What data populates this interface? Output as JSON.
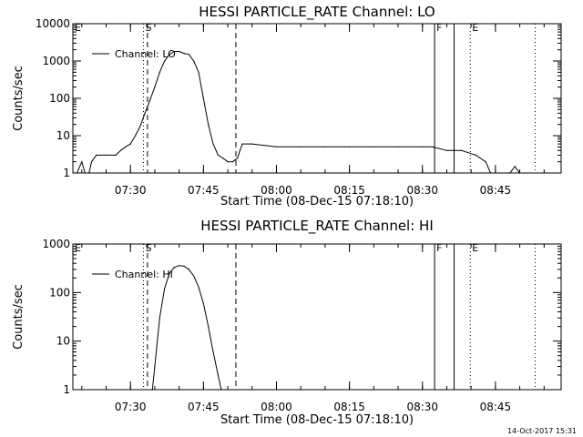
{
  "stamp": "14-Oct-2017 15:31",
  "chart_data": [
    {
      "type": "line",
      "title": "HESSI PARTICLE_RATE Channel: LO",
      "xlabel": "Start Time (08-Dec-15 07:18:10)",
      "ylabel": "Counts/sec",
      "yscale": "log",
      "ylim": [
        1,
        10000
      ],
      "xlim": [
        "07:18:10",
        "08:58:30"
      ],
      "x_ticks": [
        "07:30",
        "07:45",
        "08:00",
        "08:15",
        "08:30",
        "08:45"
      ],
      "y_ticks": [
        "1",
        "10",
        "100",
        "1000",
        "10000"
      ],
      "grid": false,
      "legend_position": "top-left",
      "markers": [
        {
          "label": "E",
          "time": "07:18:10",
          "style": "none"
        },
        {
          "label": "S",
          "time": "07:32:40",
          "style": "dotted"
        },
        {
          "label": "",
          "time": "07:33:30",
          "style": "dashed"
        },
        {
          "label": "",
          "time": "07:51:40",
          "style": "dashed"
        },
        {
          "label": "F",
          "time": "08:32:30",
          "style": "solid"
        },
        {
          "label": "",
          "time": "08:36:30",
          "style": "solid"
        },
        {
          "label": "E",
          "time": "08:39:50",
          "style": "dotted"
        },
        {
          "label": "",
          "time": "08:53:10",
          "style": "dotted"
        }
      ],
      "series": [
        {
          "name": "Channel: LO",
          "x": [
            "07:19:00",
            "07:20:00",
            "07:20:40",
            "07:21:30",
            "07:22:00",
            "07:23:00",
            "07:25:00",
            "07:27:00",
            "07:28:00",
            "07:29:00",
            "07:30:00",
            "07:31:00",
            "07:32:00",
            "07:33:00",
            "07:34:00",
            "07:35:00",
            "07:36:00",
            "07:37:00",
            "07:38:00",
            "07:39:00",
            "07:40:00",
            "07:41:00",
            "07:42:00",
            "07:43:00",
            "07:44:00",
            "07:45:00",
            "07:46:00",
            "07:47:00",
            "07:48:00",
            "07:49:00",
            "07:50:00",
            "07:51:00",
            "07:52:00",
            "07:52:30",
            "07:53:00",
            "07:55:00",
            "08:00:00",
            "08:05:00",
            "08:10:00",
            "08:15:00",
            "08:20:00",
            "08:25:00",
            "08:30:00",
            "08:32:00",
            "08:35:00",
            "08:38:00",
            "08:41:00",
            "08:43:00",
            "08:44:00",
            "08:46:00",
            "08:48:00",
            "08:49:00",
            "08:50:00"
          ],
          "y": [
            1,
            2,
            1,
            1,
            2,
            3,
            3,
            3,
            4,
            5,
            6,
            10,
            18,
            40,
            90,
            200,
            500,
            1000,
            1500,
            1800,
            1800,
            1600,
            1500,
            1000,
            500,
            100,
            20,
            6,
            3,
            2.5,
            2,
            2,
            2.5,
            4,
            6,
            6,
            5,
            5,
            5,
            5,
            5,
            5,
            5,
            5,
            4,
            4,
            3,
            2,
            1,
            1,
            1,
            1.5,
            1
          ]
        }
      ]
    },
    {
      "type": "line",
      "title": "HESSI PARTICLE_RATE Channel: HI",
      "xlabel": "Start Time (08-Dec-15 07:18:10)",
      "ylabel": "Counts/sec",
      "yscale": "log",
      "ylim": [
        1,
        1000
      ],
      "xlim": [
        "07:18:10",
        "08:58:30"
      ],
      "x_ticks": [
        "07:30",
        "07:45",
        "08:00",
        "08:15",
        "08:30",
        "08:45"
      ],
      "y_ticks": [
        "1",
        "10",
        "100",
        "1000"
      ],
      "grid": false,
      "legend_position": "top-left",
      "markers": [
        {
          "label": "E",
          "time": "07:18:10",
          "style": "none"
        },
        {
          "label": "S",
          "time": "07:32:40",
          "style": "dotted"
        },
        {
          "label": "",
          "time": "07:33:30",
          "style": "dashed"
        },
        {
          "label": "",
          "time": "07:51:40",
          "style": "dashed"
        },
        {
          "label": "F",
          "time": "08:32:30",
          "style": "solid"
        },
        {
          "label": "",
          "time": "08:36:30",
          "style": "solid"
        },
        {
          "label": "E",
          "time": "08:39:50",
          "style": "dotted"
        },
        {
          "label": "",
          "time": "08:53:10",
          "style": "dotted"
        }
      ],
      "series": [
        {
          "name": "Channel: HI",
          "x": [
            "07:34:30",
            "07:35:00",
            "07:36:00",
            "07:37:00",
            "07:38:00",
            "07:39:00",
            "07:40:00",
            "07:41:00",
            "07:42:00",
            "07:43:00",
            "07:44:00",
            "07:45:00",
            "07:46:00",
            "07:47:00",
            "07:48:00",
            "07:48:40"
          ],
          "y": [
            1,
            3,
            30,
            120,
            250,
            330,
            360,
            350,
            300,
            220,
            130,
            60,
            20,
            6,
            2,
            1
          ]
        }
      ]
    }
  ]
}
